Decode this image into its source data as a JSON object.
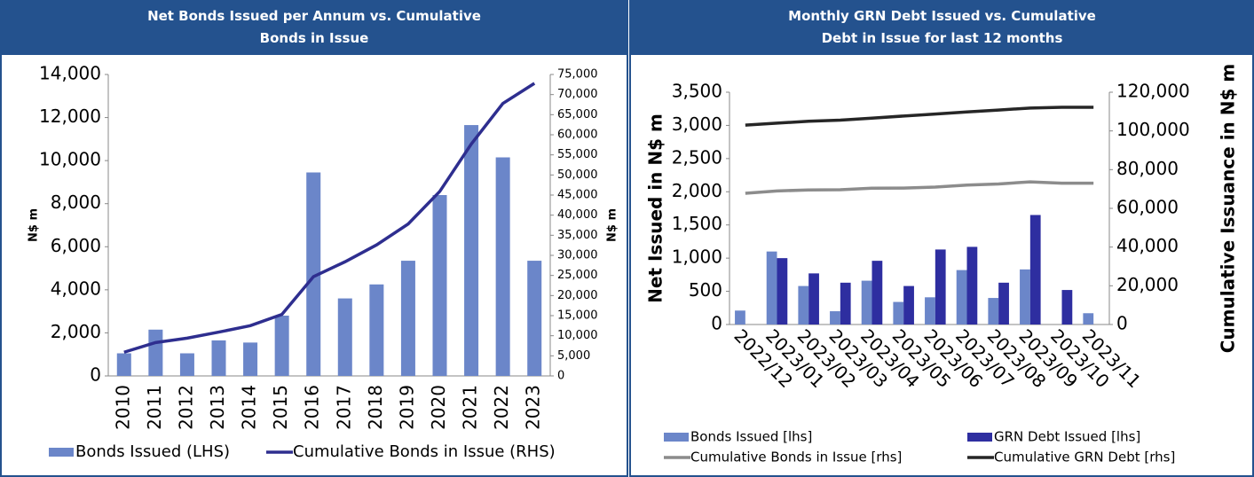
{
  "chart_data": [
    {
      "type": "combo",
      "title": "Net Bonds Issued per Annum vs. Cumulative Bonds in Issue",
      "y_label": "N$ m",
      "y2_label": "N$ m",
      "categories": [
        "2010",
        "2011",
        "2012",
        "2013",
        "2014",
        "2015",
        "2016",
        "2017",
        "2018",
        "2019",
        "2020",
        "2021",
        "2022",
        "2023"
      ],
      "series": [
        {
          "name": "Bonds Issued (LHS)",
          "type": "bar",
          "color": "#6b86c9",
          "values": [
            1050,
            2150,
            1050,
            1650,
            1550,
            2800,
            9450,
            3600,
            4250,
            5350,
            8400,
            11650,
            10150,
            5350
          ]
        },
        {
          "name": "Cumulative Bonds in Issue (RHS)",
          "type": "line",
          "axis": "y2",
          "color": "#2e2e8f",
          "values": [
            5900,
            8300,
            9400,
            10900,
            12500,
            15300,
            24700,
            28400,
            32600,
            37800,
            45900,
            57700,
            67800,
            72800
          ]
        }
      ],
      "ylim": [
        0,
        14000
      ],
      "yticks": [
        0,
        {
          "value": 2000,
          "label": "2,000"
        },
        {
          "value": 4000,
          "label": "4,000"
        },
        {
          "value": 6000,
          "label": "6,000"
        },
        {
          "value": 8000,
          "label": "8,000"
        },
        {
          "value": 10000,
          "label": "10,000"
        },
        {
          "value": 12000,
          "label": "12,000"
        },
        {
          "value": 14000,
          "label": "14,000"
        }
      ],
      "y2lim": [
        0,
        75000
      ],
      "y2ticks": [
        0,
        {
          "value": 5000,
          "label": "5,000"
        },
        {
          "value": 10000,
          "label": "10,000"
        },
        {
          "value": 15000,
          "label": "15,000"
        },
        {
          "value": 20000,
          "label": "20,000"
        },
        {
          "value": 25000,
          "label": "25,000"
        },
        {
          "value": 30000,
          "label": "30,000"
        },
        {
          "value": 35000,
          "label": "35,000"
        },
        {
          "value": 40000,
          "label": "40,000"
        },
        {
          "value": 45000,
          "label": "45,000"
        },
        {
          "value": 50000,
          "label": "50,000"
        },
        {
          "value": 55000,
          "label": "55,000"
        },
        {
          "value": 60000,
          "label": "60,000"
        },
        {
          "value": 65000,
          "label": "65,000"
        },
        {
          "value": 70000,
          "label": "70,000"
        },
        {
          "value": 75000,
          "label": "75,000"
        }
      ],
      "grid": false
    },
    {
      "type": "combo",
      "title": "Monthly GRN Debt Issued vs. Cumulative Debt in Issue for last 12 months",
      "y_label": "Net Issued in N$ m",
      "y2_label": "Cumulative Issuance in N$ m",
      "categories": [
        "2022/12",
        "2023/01",
        "2023/02",
        "2023/03",
        "2023/04",
        "2023/05",
        "2023/06",
        "2023/07",
        "2023/08",
        "2023/09",
        "2023/10",
        "2023/11"
      ],
      "series": [
        {
          "name": "Bonds Issued [lhs]",
          "type": "bar",
          "color": "#6b86c9",
          "values": [
            210,
            1100,
            580,
            200,
            660,
            340,
            410,
            820,
            400,
            830,
            0,
            170
          ]
        },
        {
          "name": "GRN Debt Issued [lhs]",
          "type": "bar",
          "color": "#2e2ea0",
          "values": [
            0,
            1000,
            770,
            630,
            960,
            580,
            1130,
            1170,
            630,
            1650,
            520,
            0
          ]
        },
        {
          "name": "Cumulative Bonds in Issue [rhs]",
          "type": "line",
          "axis": "y2",
          "color": "#8c8c8c",
          "values": [
            67800,
            69000,
            69500,
            69600,
            70400,
            70500,
            71000,
            72000,
            72600,
            73700,
            73000,
            73000
          ]
        },
        {
          "name": "Cumulative GRN Debt [rhs]",
          "type": "line",
          "axis": "y2",
          "color": "#262626",
          "values": [
            103000,
            104000,
            105000,
            105600,
            106600,
            107700,
            108700,
            109800,
            110800,
            111800,
            112200,
            112200
          ]
        }
      ],
      "ylim": [
        0,
        3500
      ],
      "yticks": [
        0,
        500,
        {
          "value": 1000,
          "label": "1,000"
        },
        {
          "value": 1500,
          "label": "1,500"
        },
        {
          "value": 2000,
          "label": "2,000"
        },
        {
          "value": 2500,
          "label": "2,500"
        },
        {
          "value": 3000,
          "label": "3,000"
        },
        {
          "value": 3500,
          "label": "3,500"
        }
      ],
      "y2lim": [
        0,
        120000
      ],
      "y2ticks": [
        0,
        {
          "value": 20000,
          "label": "20,000"
        },
        {
          "value": 40000,
          "label": "40,000"
        },
        {
          "value": 60000,
          "label": "60,000"
        },
        {
          "value": 80000,
          "label": "80,000"
        },
        {
          "value": 100000,
          "label": "100,000"
        },
        {
          "value": 120000,
          "label": "120,000"
        }
      ],
      "grid": false
    }
  ]
}
